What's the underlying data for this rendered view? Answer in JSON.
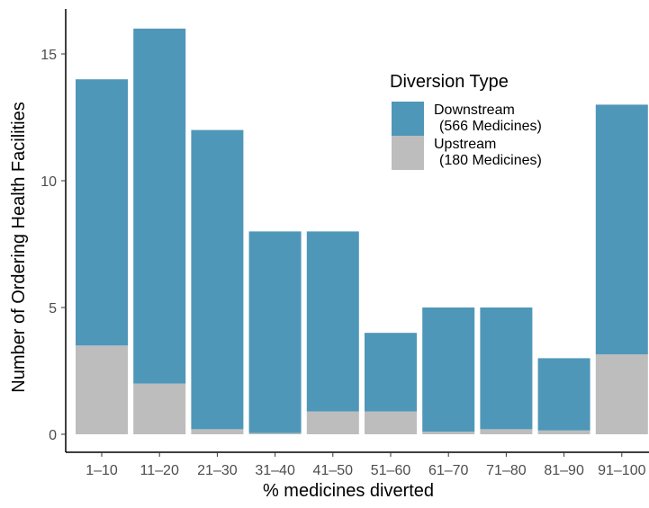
{
  "chart_data": {
    "type": "bar",
    "stacked": true,
    "title": "",
    "xlabel": "% medicines diverted",
    "ylabel": "Number of Ordering Health Facilities",
    "categories": [
      "1–10",
      "11–20",
      "21–30",
      "31–40",
      "41–50",
      "51–60",
      "61–70",
      "71–80",
      "81–90",
      "91–100"
    ],
    "series": [
      {
        "name": "Upstream\n(180 Medicines)",
        "color": "#BDBDBD",
        "values": [
          3.5,
          2.0,
          0.2,
          0.05,
          0.9,
          0.9,
          0.1,
          0.2,
          0.15,
          3.15
        ]
      },
      {
        "name": "Downstream\n(566 Medicines)",
        "color": "#4F97B8",
        "values": [
          10.5,
          14.0,
          11.8,
          7.95,
          7.1,
          3.1,
          4.9,
          4.8,
          2.85,
          9.85
        ]
      }
    ],
    "ylim": [
      0,
      16.8
    ],
    "yticks": [
      0,
      5,
      10,
      15
    ],
    "grid": false,
    "legend": {
      "title": "Diversion Type",
      "placement": "top-right",
      "entries": [
        {
          "label": "Downstream\n(566 Medicines)",
          "color": "#4F97B8"
        },
        {
          "label": "Upstream\n(180 Medicines)",
          "color": "#BDBDBD"
        }
      ]
    }
  }
}
